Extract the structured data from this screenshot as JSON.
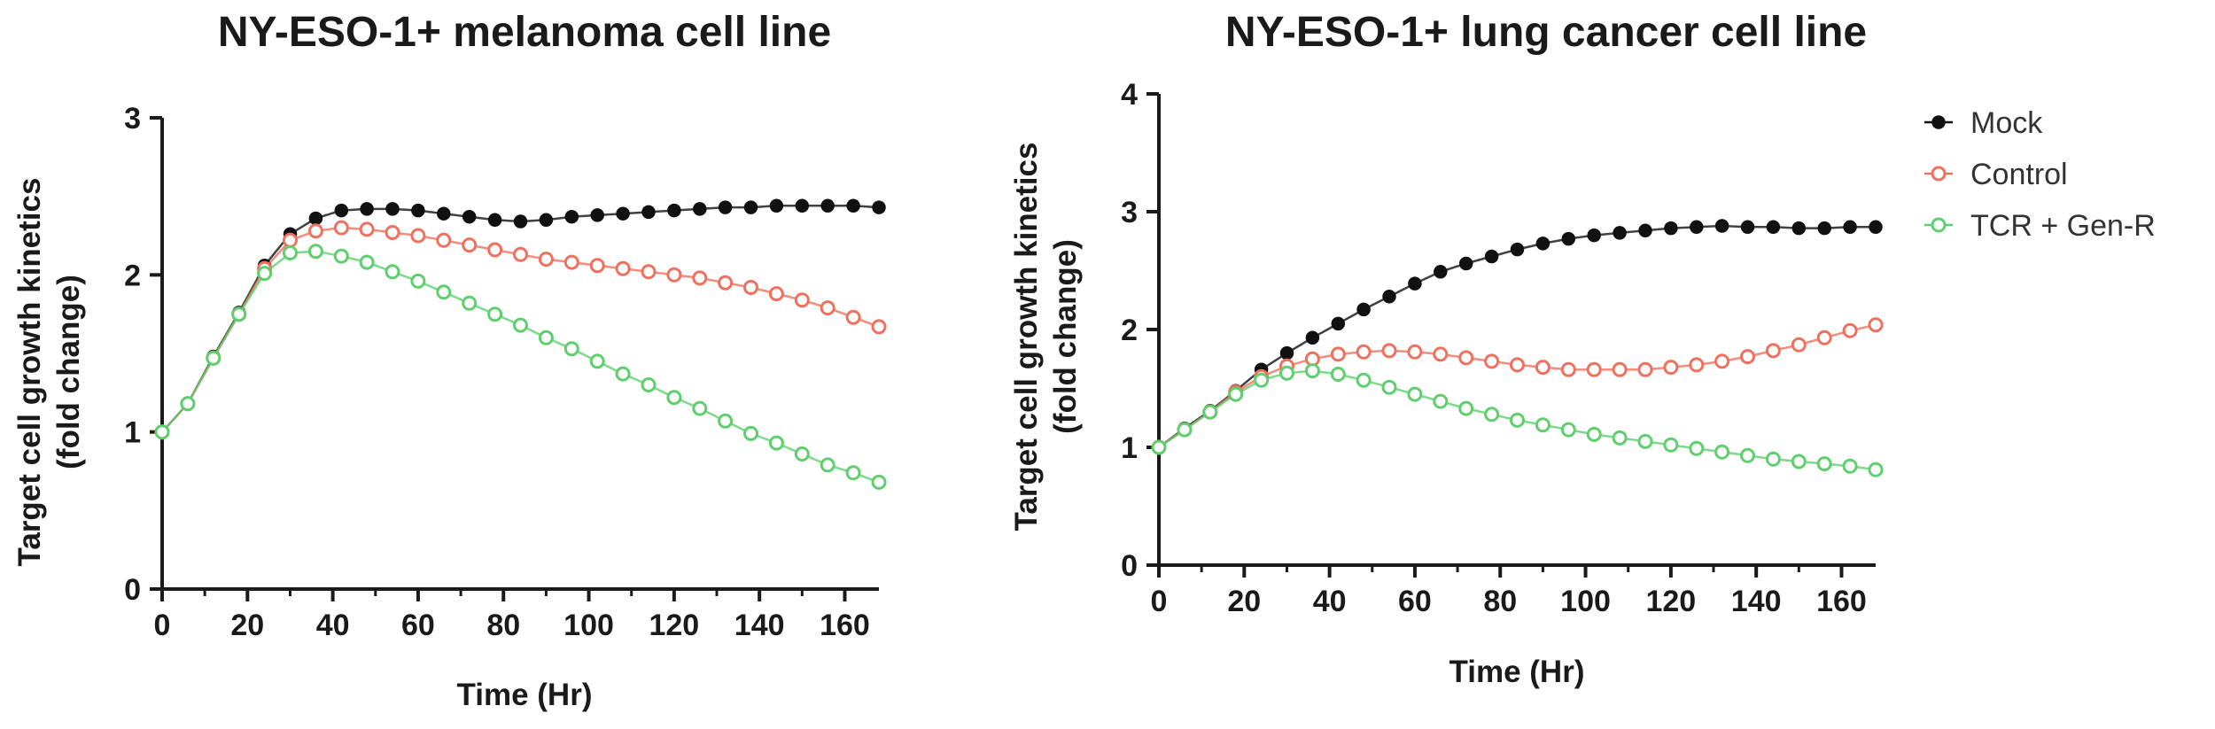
{
  "colors": {
    "mock": "#111111",
    "control": "#f0705e",
    "tcr": "#5fcf6e",
    "axis": "#1a1a1a"
  },
  "legend": [
    {
      "key": "mock",
      "label": "Mock",
      "marker": "filled"
    },
    {
      "key": "control",
      "label": "Control",
      "marker": "open"
    },
    {
      "key": "tcr",
      "label": "TCR + Gen-R",
      "marker": "open"
    }
  ],
  "chart_data": [
    {
      "type": "line",
      "title": "NY-ESO-1+ melanoma cell line",
      "xlabel": "Time (Hr)",
      "ylabel": [
        "Target cell growth kinetics",
        "(fold change)"
      ],
      "xlim": [
        0,
        168
      ],
      "ylim": [
        0,
        3
      ],
      "xticks": [
        "0",
        "20",
        "40",
        "60",
        "80",
        "100",
        "120",
        "140",
        "160"
      ],
      "yticks": [
        "0",
        "1",
        "2",
        "3"
      ],
      "x": [
        0,
        6,
        12,
        18,
        24,
        30,
        36,
        42,
        48,
        54,
        60,
        66,
        72,
        78,
        84,
        90,
        96,
        102,
        108,
        114,
        120,
        126,
        132,
        138,
        144,
        150,
        156,
        162,
        168
      ],
      "series": [
        {
          "name": "Mock",
          "key": "mock",
          "values": [
            1.0,
            1.18,
            1.48,
            1.76,
            2.06,
            2.26,
            2.36,
            2.41,
            2.42,
            2.42,
            2.41,
            2.39,
            2.37,
            2.35,
            2.34,
            2.35,
            2.37,
            2.38,
            2.39,
            2.4,
            2.41,
            2.42,
            2.43,
            2.43,
            2.44,
            2.44,
            2.44,
            2.44,
            2.43
          ]
        },
        {
          "name": "Control",
          "key": "control",
          "values": [
            1.0,
            1.18,
            1.47,
            1.75,
            2.04,
            2.22,
            2.28,
            2.3,
            2.29,
            2.27,
            2.25,
            2.22,
            2.19,
            2.16,
            2.13,
            2.1,
            2.08,
            2.06,
            2.04,
            2.02,
            2.0,
            1.98,
            1.95,
            1.92,
            1.88,
            1.84,
            1.79,
            1.73,
            1.67
          ]
        },
        {
          "name": "TCR + Gen-R",
          "key": "tcr",
          "values": [
            1.0,
            1.18,
            1.47,
            1.75,
            2.01,
            2.14,
            2.15,
            2.12,
            2.08,
            2.02,
            1.96,
            1.89,
            1.82,
            1.75,
            1.68,
            1.6,
            1.53,
            1.45,
            1.37,
            1.3,
            1.22,
            1.15,
            1.07,
            0.99,
            0.93,
            0.86,
            0.79,
            0.74,
            0.68
          ]
        }
      ]
    },
    {
      "type": "line",
      "title": "NY-ESO-1+ lung cancer cell line",
      "xlabel": "Time (Hr)",
      "ylabel": [
        "Target cell growth kinetics",
        "(fold change)"
      ],
      "xlim": [
        0,
        168
      ],
      "ylim": [
        0,
        4
      ],
      "xticks": [
        "0",
        "20",
        "40",
        "60",
        "80",
        "100",
        "120",
        "140",
        "160"
      ],
      "yticks": [
        "0",
        "1",
        "2",
        "3",
        "4"
      ],
      "x": [
        0,
        6,
        12,
        18,
        24,
        30,
        36,
        42,
        48,
        54,
        60,
        66,
        72,
        78,
        84,
        90,
        96,
        102,
        108,
        114,
        120,
        126,
        132,
        138,
        144,
        150,
        156,
        162,
        168
      ],
      "series": [
        {
          "name": "Mock",
          "key": "mock",
          "values": [
            1.0,
            1.16,
            1.31,
            1.48,
            1.66,
            1.8,
            1.93,
            2.05,
            2.17,
            2.28,
            2.39,
            2.49,
            2.56,
            2.62,
            2.68,
            2.73,
            2.77,
            2.8,
            2.82,
            2.84,
            2.86,
            2.87,
            2.88,
            2.87,
            2.87,
            2.86,
            2.86,
            2.87,
            2.87
          ]
        },
        {
          "name": "Control",
          "key": "control",
          "values": [
            1.0,
            1.15,
            1.3,
            1.47,
            1.6,
            1.69,
            1.75,
            1.79,
            1.81,
            1.82,
            1.81,
            1.79,
            1.76,
            1.73,
            1.7,
            1.68,
            1.66,
            1.66,
            1.66,
            1.66,
            1.68,
            1.7,
            1.73,
            1.77,
            1.82,
            1.87,
            1.93,
            1.99,
            2.04
          ]
        },
        {
          "name": "TCR + Gen-R",
          "key": "tcr",
          "values": [
            1.0,
            1.15,
            1.3,
            1.45,
            1.57,
            1.63,
            1.65,
            1.62,
            1.57,
            1.51,
            1.45,
            1.39,
            1.33,
            1.28,
            1.23,
            1.19,
            1.15,
            1.11,
            1.08,
            1.05,
            1.02,
            0.99,
            0.96,
            0.93,
            0.9,
            0.88,
            0.86,
            0.84,
            0.81
          ]
        }
      ]
    }
  ]
}
